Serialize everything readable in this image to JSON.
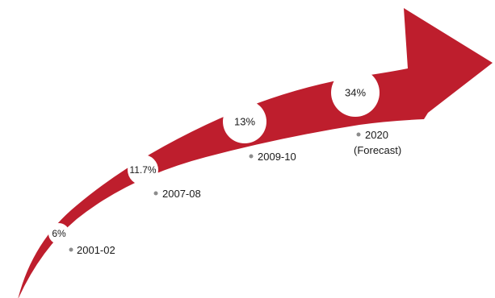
{
  "colors": {
    "arrow": "#be1e2d",
    "circle": "#ffffff",
    "dot": "#8c8c8c",
    "text": "#1a1a1a"
  },
  "milestones": [
    {
      "value": "6%",
      "period": "2001-02",
      "note": ""
    },
    {
      "value": "11.7%",
      "period": "2007-08",
      "note": ""
    },
    {
      "value": "13%",
      "period": "2009-10",
      "note": ""
    },
    {
      "value": "34%",
      "period": "2020",
      "note": "(Forecast)"
    }
  ]
}
